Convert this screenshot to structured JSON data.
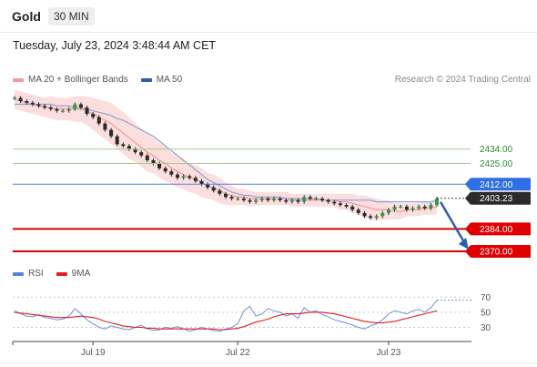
{
  "header": {
    "instrument": "Gold",
    "interval": "30 MIN",
    "timestamp": "Tuesday, July 23, 2024 3:48:44 AM CET"
  },
  "price_legend": [
    {
      "name": "MA 20 + Bollinger Bands",
      "color": "#f59a9a"
    },
    {
      "name": "MA 50",
      "color": "#2e5ea8"
    }
  ],
  "credit": "Research © 2024 Trading Central",
  "rsi_legend": [
    {
      "name": "RSI",
      "color": "#5b7fe0"
    },
    {
      "name": "9MA",
      "color": "#e02020"
    }
  ],
  "chart_data": {
    "type": "line",
    "price": {
      "ylim": [
        2362,
        2472
      ],
      "close": [
        2466,
        2464,
        2463,
        2462,
        2461,
        2460,
        2459,
        2458,
        2458,
        2459,
        2462,
        2460,
        2456,
        2454,
        2450,
        2446,
        2442,
        2437,
        2436,
        2434,
        2432,
        2430,
        2427,
        2425,
        2422,
        2420,
        2418,
        2416,
        2417,
        2416,
        2414,
        2412,
        2410,
        2408,
        2406,
        2404,
        2403,
        2403,
        2402,
        2401,
        2402,
        2403,
        2402,
        2403,
        2402,
        2401,
        2402,
        2401,
        2404,
        2403,
        2403,
        2402,
        2401,
        2400,
        2399,
        2398,
        2396,
        2394,
        2392,
        2391,
        2392,
        2394,
        2396,
        2398,
        2398,
        2396,
        2397,
        2398,
        2397,
        2399,
        2403
      ],
      "ma20": [
        2465,
        2464,
        2463,
        2462,
        2461,
        2460,
        2460,
        2459,
        2459,
        2459,
        2459,
        2459,
        2458,
        2456,
        2454,
        2452,
        2450,
        2447,
        2444,
        2441,
        2438,
        2435,
        2432,
        2430,
        2427,
        2425,
        2422,
        2420,
        2418,
        2416,
        2415,
        2413,
        2411,
        2410,
        2408,
        2406,
        2405,
        2404,
        2404,
        2403,
        2403,
        2403,
        2403,
        2403,
        2403,
        2403,
        2402,
        2402,
        2402,
        2402,
        2402,
        2402,
        2402,
        2402,
        2401,
        2401,
        2400,
        2399,
        2398,
        2397,
        2396,
        2396,
        2396,
        2395,
        2395,
        2396,
        2396,
        2396,
        2397,
        2397,
        2398
      ],
      "ma50": [
        2462,
        2462,
        2462,
        2462,
        2462,
        2462,
        2462,
        2461,
        2461,
        2461,
        2460,
        2460,
        2459,
        2458,
        2457,
        2456,
        2455,
        2453,
        2452,
        2450,
        2448,
        2446,
        2444,
        2442,
        2439,
        2436,
        2433,
        2430,
        2427,
        2424,
        2421,
        2418,
        2415,
        2413,
        2411,
        2409,
        2407,
        2406,
        2405,
        2405,
        2404,
        2404,
        2404,
        2404,
        2404,
        2403,
        2403,
        2403,
        2403,
        2403,
        2403,
        2402,
        2402,
        2402,
        2402,
        2402,
        2402,
        2402,
        2402,
        2402,
        2401,
        2401,
        2401,
        2401,
        2401,
        2401,
        2401,
        2401,
        2401,
        2401,
        2402
      ],
      "bb_width": [
        6,
        6,
        6,
        6,
        6,
        6,
        7,
        7,
        7,
        7,
        8,
        8,
        9,
        10,
        11,
        12,
        13,
        13,
        13,
        13,
        12,
        12,
        12,
        11,
        11,
        11,
        10,
        10,
        9,
        9,
        9,
        9,
        8,
        8,
        8,
        7,
        6,
        5,
        5,
        5,
        4,
        4,
        4,
        4,
        4,
        4,
        4,
        4,
        4,
        4,
        4,
        4,
        4,
        4,
        5,
        5,
        6,
        6,
        7,
        7,
        7,
        6,
        6,
        5,
        5,
        4,
        4,
        4,
        4,
        4,
        5
      ],
      "levels": [
        {
          "value": 2434.0,
          "label": "2434.00",
          "kind": "resistance"
        },
        {
          "value": 2425.0,
          "label": "2425.00",
          "kind": "resistance"
        },
        {
          "value": 2412.0,
          "label": "2412.00",
          "kind": "pivot"
        },
        {
          "value": 2384.0,
          "label": "2384.00",
          "kind": "support"
        },
        {
          "value": 2370.0,
          "label": "2370.00",
          "kind": "support"
        }
      ],
      "last_price": {
        "value": 2403.23,
        "label": "2403.23"
      },
      "forecast_arrow": {
        "from": 2403.23,
        "to": 2370.0
      }
    },
    "rsi": {
      "ylim": [
        15,
        80
      ],
      "ticks": [
        70,
        50,
        30
      ],
      "values": [
        52,
        48,
        45,
        44,
        47,
        43,
        42,
        40,
        41,
        45,
        55,
        48,
        40,
        35,
        30,
        28,
        32,
        30,
        28,
        27,
        30,
        33,
        28,
        26,
        27,
        30,
        29,
        31,
        28,
        25,
        27,
        30,
        28,
        26,
        25,
        28,
        30,
        35,
        52,
        58,
        45,
        48,
        55,
        52,
        50,
        45,
        48,
        42,
        56,
        50,
        52,
        47,
        44,
        40,
        38,
        36,
        33,
        30,
        28,
        32,
        35,
        40,
        48,
        52,
        50,
        48,
        52,
        54,
        50,
        56,
        66
      ],
      "ma9": [
        50,
        49,
        48,
        47,
        46,
        45,
        44,
        43,
        43,
        43,
        44,
        45,
        44,
        43,
        41,
        38,
        36,
        34,
        32,
        31,
        30,
        30,
        29,
        29,
        28,
        28,
        28,
        28,
        28,
        28,
        28,
        28,
        28,
        28,
        27,
        27,
        28,
        29,
        31,
        34,
        37,
        39,
        41,
        44,
        46,
        48,
        48,
        48,
        49,
        50,
        50,
        50,
        49,
        48,
        46,
        44,
        42,
        40,
        38,
        37,
        36,
        36,
        37,
        38,
        40,
        42,
        44,
        46,
        48,
        50,
        52
      ]
    },
    "x_ticks": [
      {
        "label": "Jul 19",
        "index": 13
      },
      {
        "label": "Jul 22",
        "index": 37
      },
      {
        "label": "Jul 23",
        "index": 62
      }
    ]
  }
}
